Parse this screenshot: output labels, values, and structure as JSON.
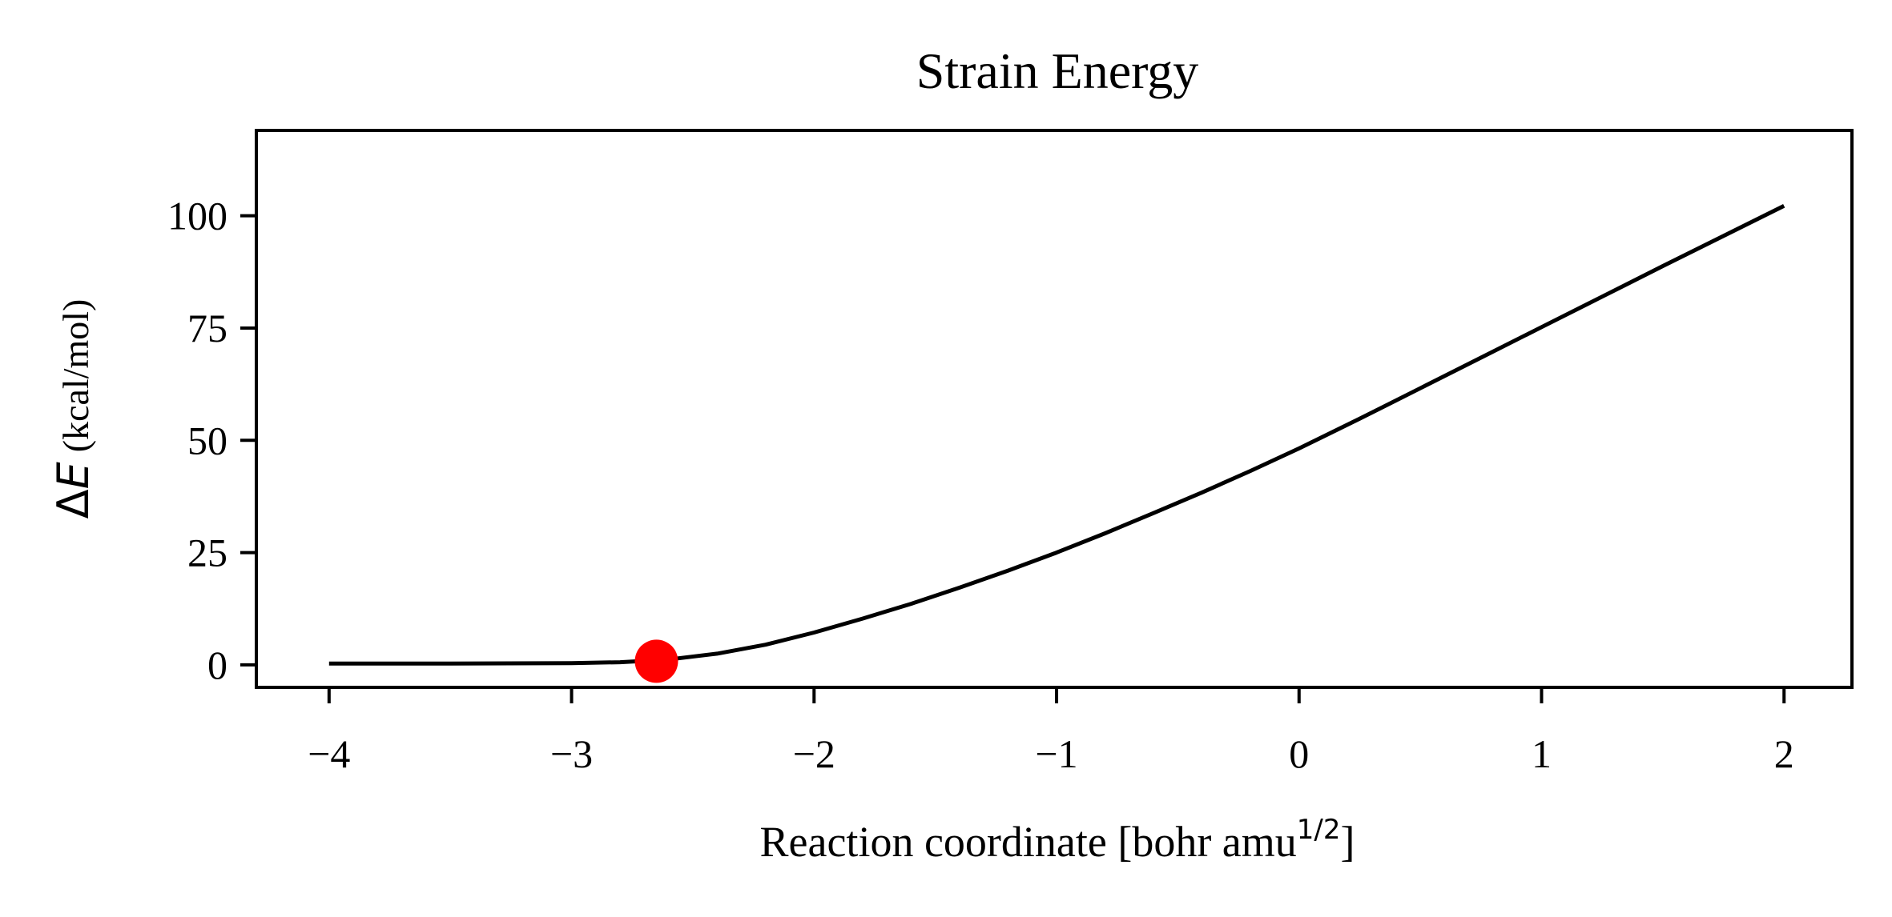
{
  "chart_data": {
    "type": "line",
    "title": "Strain Energy",
    "xlabel": {
      "main": "Reaction coordinate [bohr amu",
      "sup": "1/2",
      "close": "]"
    },
    "ylabel": {
      "delta": "Δ",
      "symbol": "E",
      "unit": "(kcal/mol)"
    },
    "xlim": [
      -4.3,
      2.28
    ],
    "ylim": [
      -5,
      119
    ],
    "xticks": [
      -4,
      -3,
      -2,
      -1,
      0,
      1,
      2
    ],
    "xtick_labels": [
      "−4",
      "−3",
      "−2",
      "−1",
      "0",
      "1",
      "2"
    ],
    "yticks": [
      0,
      25,
      50,
      75,
      100
    ],
    "ytick_labels": [
      "0",
      "25",
      "50",
      "75",
      "100"
    ],
    "grid": false,
    "series": [
      {
        "color": "#000000",
        "x": [
          -4.0,
          -3.5,
          -3.0,
          -2.8,
          -2.6,
          -2.4,
          -2.2,
          -2.0,
          -1.8,
          -1.6,
          -1.4,
          -1.2,
          -1.0,
          -0.8,
          -0.6,
          -0.4,
          -0.2,
          0.0,
          0.25,
          0.5,
          0.75,
          1.0,
          1.25,
          1.5,
          1.75,
          2.0
        ],
        "y": [
          0.3,
          0.3,
          0.4,
          0.6,
          1.2,
          2.5,
          4.5,
          7.2,
          10.3,
          13.6,
          17.2,
          21.0,
          25.0,
          29.3,
          33.8,
          38.4,
          43.2,
          48.2,
          54.8,
          61.6,
          68.4,
          75.2,
          82.0,
          88.8,
          95.5,
          102.2
        ]
      }
    ],
    "marker": {
      "x": -2.65,
      "y": 0.8,
      "color": "#ff0000"
    }
  }
}
